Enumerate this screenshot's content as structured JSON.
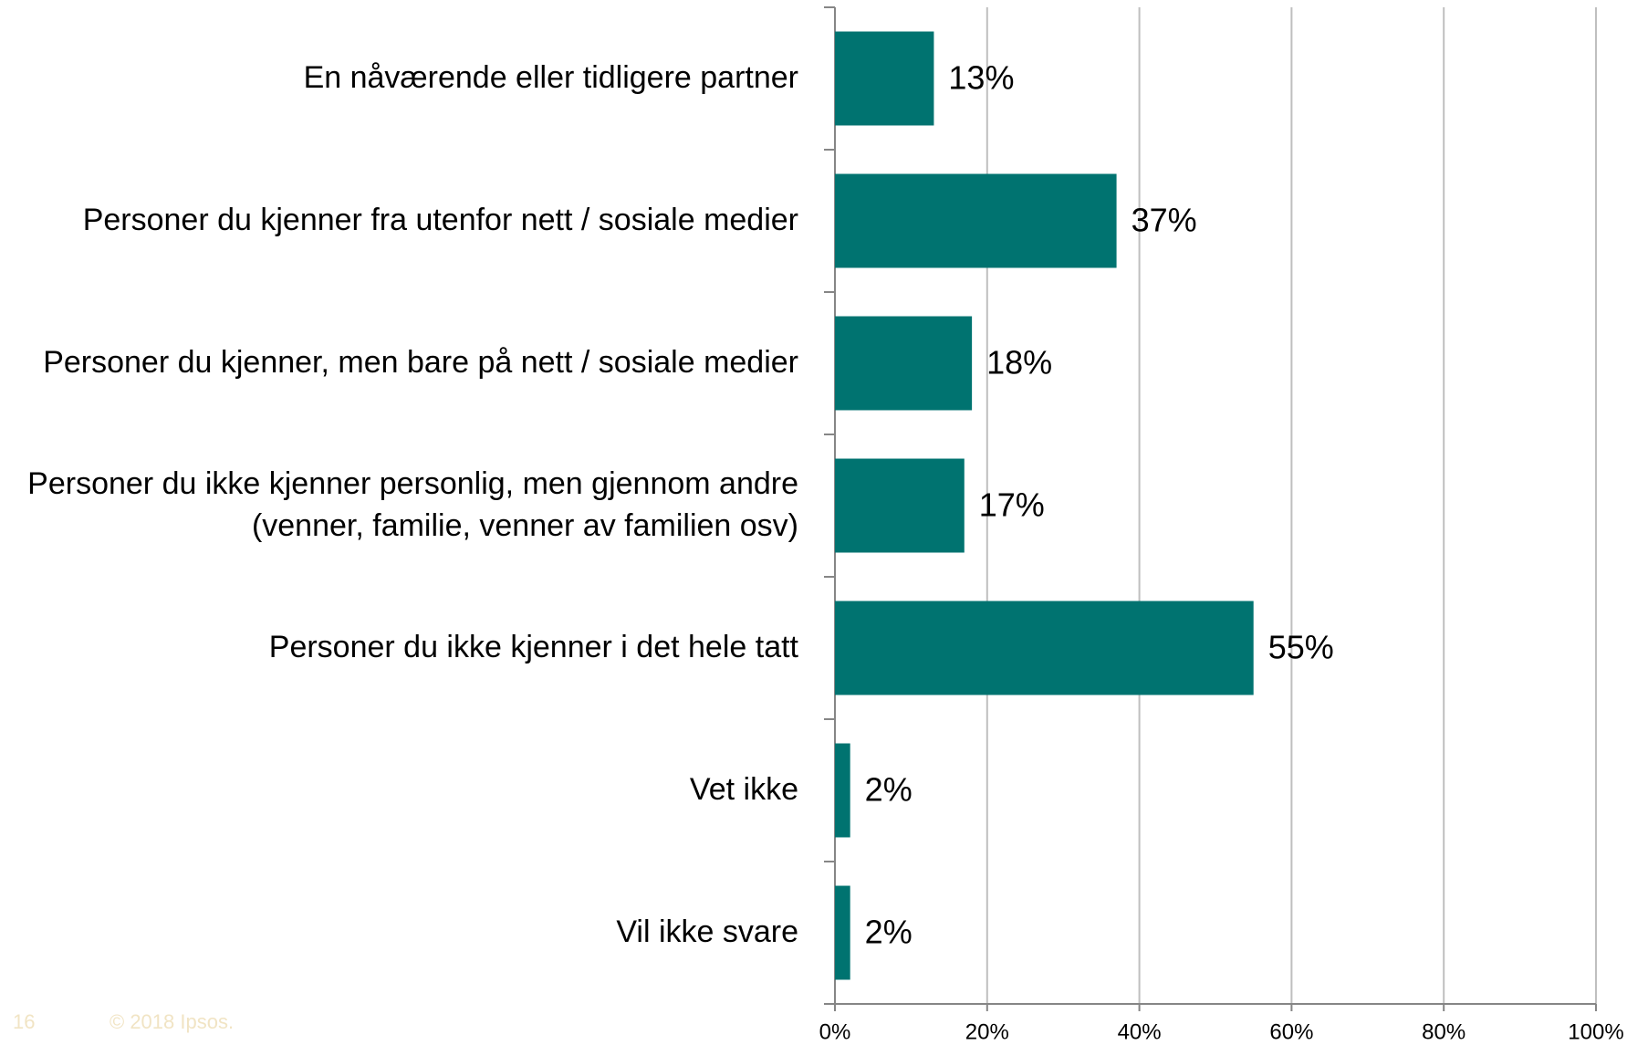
{
  "chart_data": {
    "type": "bar",
    "orientation": "horizontal",
    "categories": [
      "En nåværende eller tidligere partner",
      "Personer du kjenner fra utenfor nett / sosiale medier",
      "Personer du kjenner, men bare på nett / sosiale medier",
      "Personer du ikke kjenner personlig, men gjennom andre (venner, familie, venner av familien osv)",
      "Personer du ikke kjenner i det hele tatt",
      "Vet ikke",
      "Vil ikke svare"
    ],
    "values": [
      13,
      37,
      18,
      17,
      55,
      2,
      2
    ],
    "value_labels": [
      "13%",
      "37%",
      "18%",
      "17%",
      "55%",
      "2%",
      "2%"
    ],
    "color": "#007370",
    "xlim": [
      0,
      100
    ],
    "xticks": [
      {
        "value": 0,
        "label": "0%"
      },
      {
        "value": 20,
        "label": "20%"
      },
      {
        "value": 40,
        "label": "40%"
      },
      {
        "value": 60,
        "label": "60%"
      },
      {
        "value": 80,
        "label": "80%"
      },
      {
        "value": 100,
        "label": "100%"
      }
    ],
    "grid": true
  },
  "footer": {
    "page": "16",
    "copyright": "© 2018 Ipsos."
  }
}
